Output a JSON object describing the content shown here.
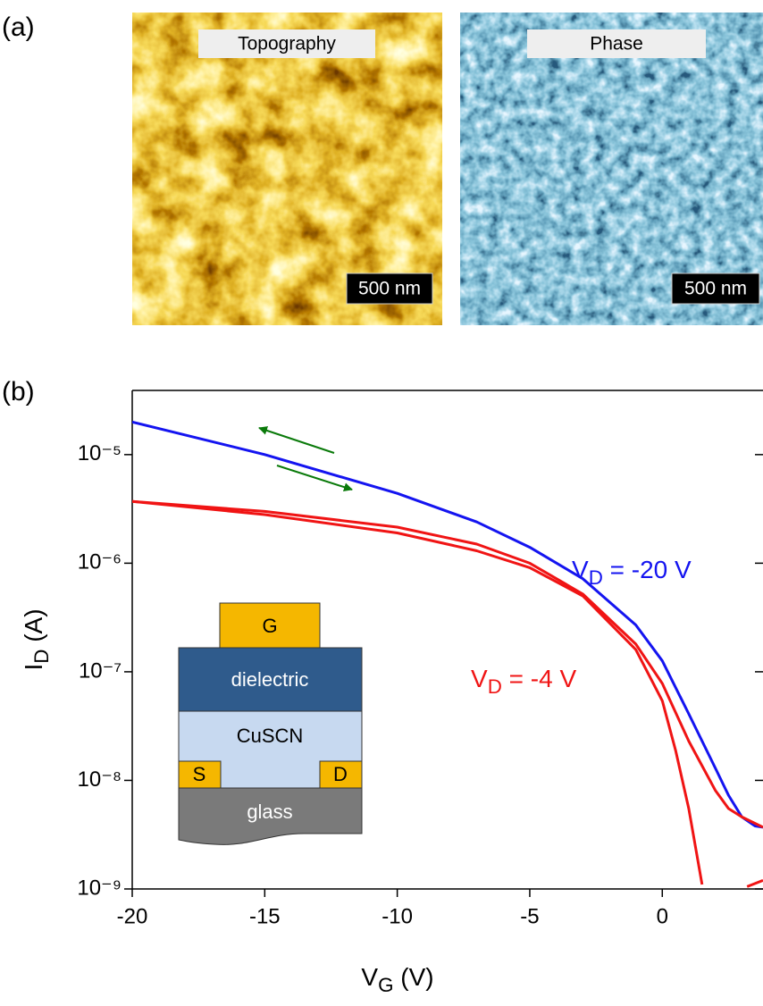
{
  "panel_labels": [
    "(a)",
    "(b)"
  ],
  "images": [
    {
      "label": "Topography",
      "scale_bar": "500 nm"
    },
    {
      "label": "Phase",
      "scale_bar": "500 nm"
    }
  ],
  "inset": {
    "layers": [
      "G",
      "dielectric",
      "CuSCN",
      "S",
      "D",
      "glass"
    ]
  },
  "chart_data": {
    "type": "line",
    "xlabel": "VG (V)",
    "ylabel": "ID (A)",
    "xlim": [
      -20,
      3.8
    ],
    "xticks": [
      -20,
      -15,
      -10,
      -5,
      0
    ],
    "ylim": [
      1e-09,
      3.9e-05
    ],
    "log_y": true,
    "yticks": [
      {
        "value": 1e-09,
        "label": "10⁻⁹"
      },
      {
        "value": 1e-08,
        "label": "10⁻⁸"
      },
      {
        "value": 1e-07,
        "label": "10⁻⁷"
      },
      {
        "value": 1e-06,
        "label": "10⁻⁶"
      },
      {
        "value": 1e-05,
        "label": "10⁻⁵"
      }
    ],
    "series": [
      {
        "name": "VD = -20 V",
        "color": "#1414f0",
        "x": [
          -20,
          -15,
          -10,
          -7,
          -5,
          -3,
          -1,
          0,
          1,
          2,
          2.5,
          3,
          3.5,
          3.8
        ],
        "values": [
          2e-05,
          1e-05,
          4.4e-06,
          2.4e-06,
          1.4e-06,
          7.2e-07,
          2.7e-07,
          1.26e-07,
          4.1e-08,
          1.3e-08,
          7.3e-09,
          4.6e-09,
          3.8e-09,
          3.7e-09
        ]
      },
      {
        "name": "VD = -4 V",
        "color": "#f01414",
        "x": [
          -20,
          -15,
          -10,
          -7,
          -5,
          -3,
          -1,
          0,
          1,
          2,
          2.5,
          3,
          3.8
        ],
        "values": [
          3.7e-06,
          3e-06,
          2.15e-06,
          1.5e-06,
          1e-06,
          5.2e-07,
          1.8e-07,
          7.8e-08,
          2.3e-08,
          8.1e-09,
          5.5e-09,
          4.6e-09,
          3.7e-09
        ]
      },
      {
        "color": "#f01414",
        "x": [
          -20,
          -15,
          -10,
          -7,
          -5,
          -3,
          -1,
          0,
          0.5,
          1,
          1.5,
          2.4,
          3.2,
          3.8
        ],
        "values": [
          3.7e-06,
          2.8e-06,
          1.9e-06,
          1.3e-06,
          9.1e-07,
          5e-07,
          1.6e-07,
          5.4e-08,
          1.9e-08,
          5.5e-09,
          1.1e-09,
          null,
          1.05e-09,
          1.2e-09
        ]
      }
    ]
  }
}
